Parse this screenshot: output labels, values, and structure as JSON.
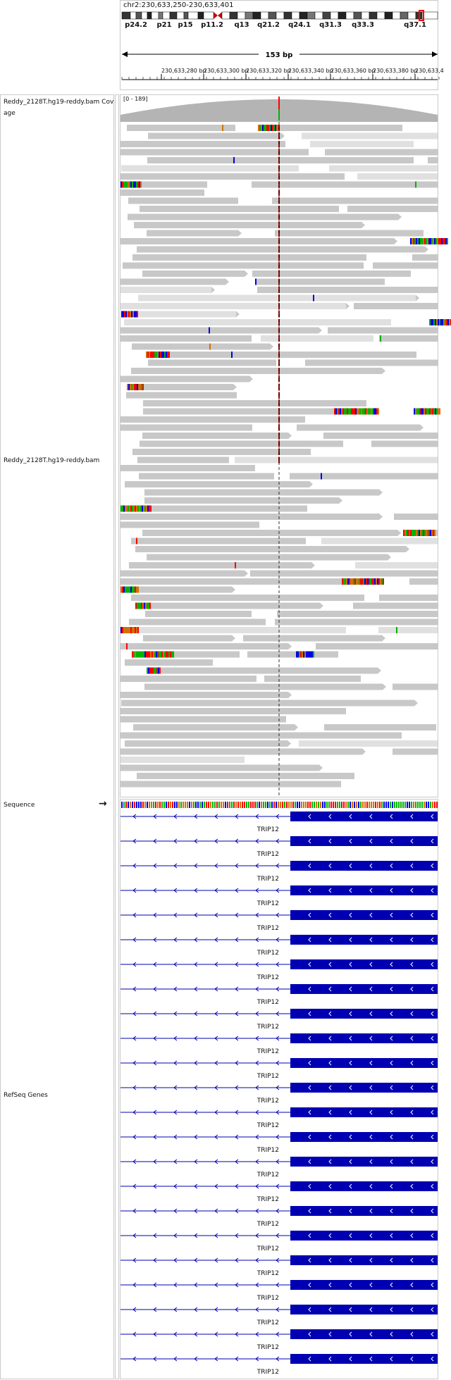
{
  "locus": "chr2:230,633,250-230,633,401",
  "cytobands": [
    "p24.2",
    "p21",
    "p15",
    "p11.2",
    "q13",
    "q21.2",
    "q24.1",
    "q31.3",
    "q33.3",
    "q37.1"
  ],
  "span": "153 bp",
  "ruler_ticks": [
    "230,633,280 bp",
    "230,633,300 bp",
    "230,633,320 bp",
    "230,633,340 bp",
    "230,633,360 bp",
    "230,633,380 bp",
    "230,633,4"
  ],
  "coverage": {
    "label": "Reddy_2128T.hg19-reddy.bam Coverage",
    "label_line1": "Reddy_2128T.hg19-reddy.bam Cov",
    "label_line2": "age",
    "range": "[0 - 189]"
  },
  "alignment": {
    "label": "Reddy_2128T.hg19-reddy.bam"
  },
  "sequence": {
    "label": "Sequence",
    "strand_arrow": "→"
  },
  "refseq": {
    "label": "RefSeq Genes",
    "transcripts": [
      {
        "name": "TRIP12"
      },
      {
        "name": "TRIP12"
      },
      {
        "name": "TRIP12"
      },
      {
        "name": "TRIP12"
      },
      {
        "name": "TRIP12"
      },
      {
        "name": "TRIP12"
      },
      {
        "name": "TRIP12"
      },
      {
        "name": "TRIP12"
      },
      {
        "name": "TRIP12"
      },
      {
        "name": "TRIP12"
      },
      {
        "name": "TRIP12"
      },
      {
        "name": "TRIP12"
      },
      {
        "name": "TRIP12"
      },
      {
        "name": "TRIP12"
      },
      {
        "name": "TRIP12"
      },
      {
        "name": "TRIP12"
      },
      {
        "name": "TRIP12"
      },
      {
        "name": "TRIP12"
      },
      {
        "name": "TRIP12"
      },
      {
        "name": "TRIP12"
      },
      {
        "name": "TRIP12"
      },
      {
        "name": "TRIP12"
      },
      {
        "name": "TRIP12"
      }
    ]
  },
  "colors": {
    "read": "#c8c8c8",
    "read_light": "#e0e0e0",
    "coverage": "#b4b4b4",
    "gene": "#0000b2",
    "base_A": "#00b300",
    "base_C": "#0000e6",
    "base_G": "#d17105",
    "base_T": "#ff0000"
  }
}
